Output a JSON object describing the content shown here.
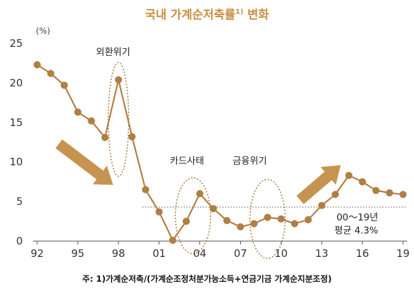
{
  "title": "국내 가계순저축률",
  "title_sup": "1)",
  "title_suffix": " 변화",
  "unit": "(%)",
  "footnote": "주: 1)가계순저축/(가계순조정처분가능소득+연금기금 가계순지분조정)",
  "colors": {
    "line": "#b07f43",
    "marker": "#b07f43",
    "arrow": "#c69450",
    "ellipse": "#b07f43",
    "avg_line": "#777777",
    "axis": "#555555",
    "title": "#c98f42"
  },
  "chart_data": {
    "type": "line",
    "x": [
      1992,
      1993,
      1994,
      1995,
      1996,
      1997,
      1998,
      1999,
      2000,
      2001,
      2002,
      2003,
      2004,
      2005,
      2006,
      2007,
      2008,
      2009,
      2010,
      2011,
      2012,
      2013,
      2014,
      2015,
      2016,
      2017,
      2018,
      2019
    ],
    "values": [
      22.3,
      21.2,
      19.7,
      16.3,
      15.2,
      13.1,
      20.4,
      13.2,
      6.5,
      3.7,
      0.1,
      2.5,
      6.0,
      4.1,
      2.6,
      1.8,
      2.2,
      3.0,
      2.8,
      2.2,
      2.7,
      4.5,
      5.9,
      8.3,
      7.5,
      6.4,
      6.1,
      5.9
    ],
    "xtick_values": [
      1992,
      1995,
      1998,
      2001,
      2004,
      2007,
      2010,
      2013,
      2016,
      2019
    ],
    "xtick_labels": [
      "92",
      "95",
      "98",
      "01",
      "04",
      "07",
      "10",
      "13",
      "16",
      "19"
    ],
    "ytick_values": [
      0,
      5,
      10,
      15,
      20,
      25
    ],
    "ytick_labels": [
      "0",
      "5",
      "10",
      "15",
      "20",
      "25"
    ],
    "xlim": [
      1991.7,
      2019.3
    ],
    "ylim": [
      0,
      25
    ],
    "grid": false,
    "average": {
      "value": 4.3,
      "from": 2000,
      "to": 2019,
      "label_line1": "00～19년",
      "label_line2": "평균 4.3%"
    },
    "annotations": [
      {
        "text": "외환위기",
        "center_x": 1998,
        "center_y": 15.4,
        "half_width_years": 0.75,
        "half_height": 7.2
      },
      {
        "text": "카드사태",
        "center_x": 2003.5,
        "center_y": 3.2,
        "half_width_years": 1.3,
        "half_height": 4.8
      },
      {
        "text": "금융위기",
        "center_x": 2009.0,
        "center_y": 2.8,
        "half_width_years": 1.3,
        "half_height": 5.0
      }
    ],
    "arrows": [
      {
        "direction": "down",
        "from": [
          1993.6,
          12.3
        ],
        "to": [
          1997.6,
          7.1
        ]
      },
      {
        "direction": "up",
        "from": [
          2011.4,
          5.2
        ],
        "to": [
          2014.4,
          9.6
        ]
      }
    ]
  }
}
